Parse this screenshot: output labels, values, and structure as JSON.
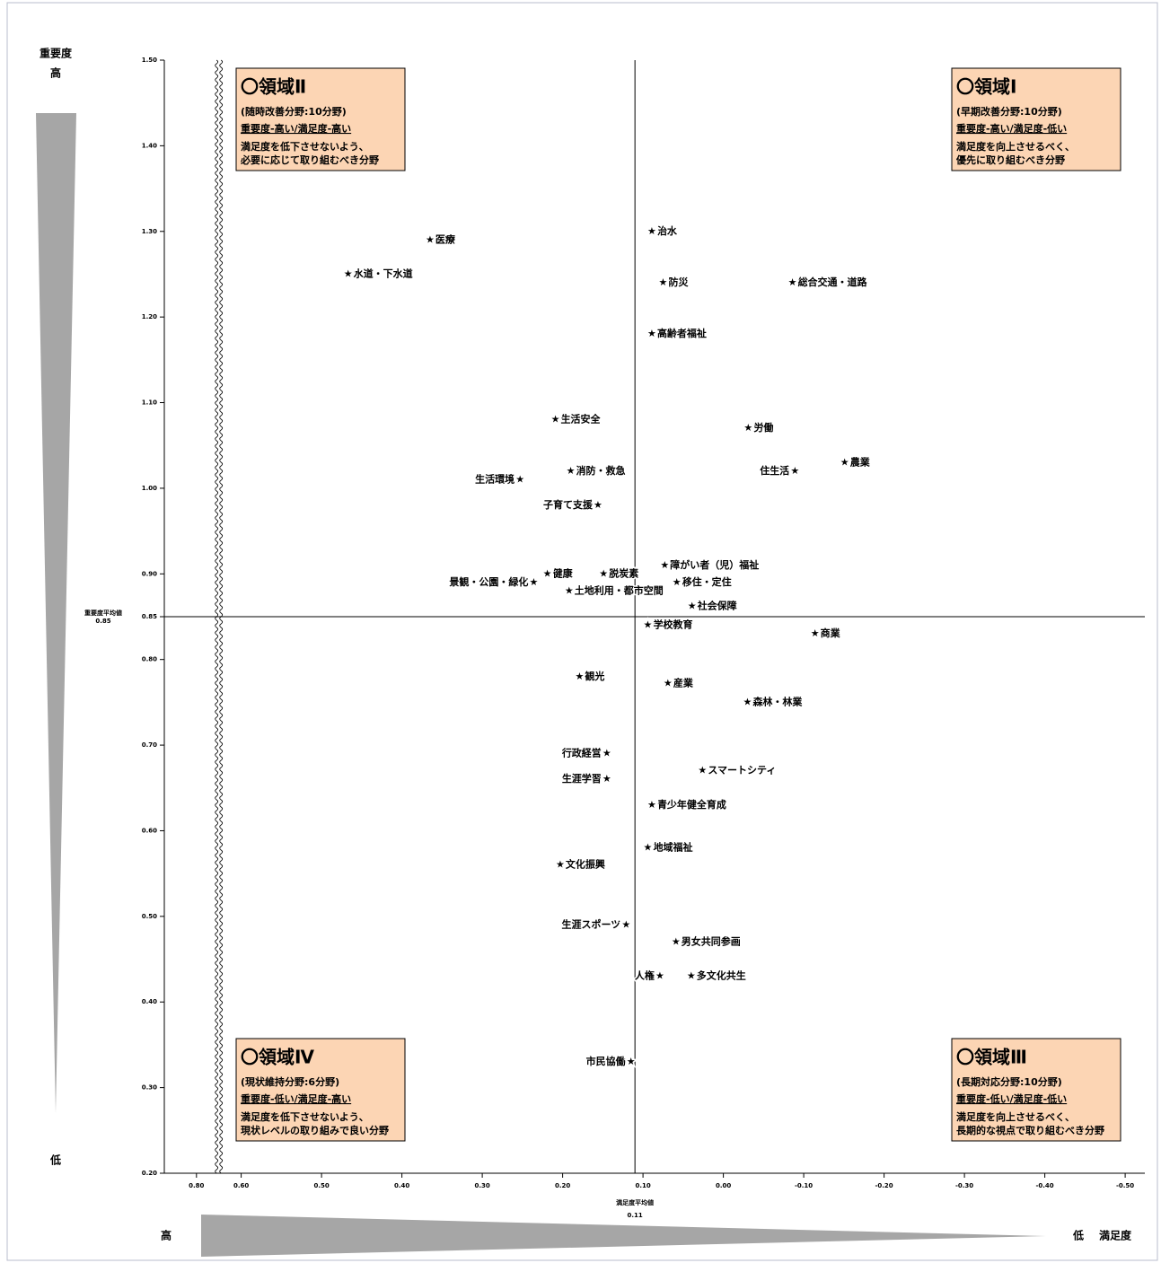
{
  "chart_data": {
    "type": "scatter",
    "y_axis_label": "重要度",
    "y_high": "高",
    "y_low": "低",
    "x_axis_label": "満足度",
    "x_high": "高",
    "x_low": "低",
    "mean_x": {
      "label": "満足度平均値",
      "value": 0.11
    },
    "mean_y": {
      "label": "重要度平均値",
      "value": 0.85
    },
    "xlim": [
      0.84,
      -0.52
    ],
    "x_break": [
      0.78,
      0.62
    ],
    "ylim": [
      0.2,
      1.5
    ],
    "xticks": [
      {
        "value": 0.8,
        "label": "0.80"
      },
      {
        "value": 0.6,
        "label": "0.60"
      },
      {
        "value": 0.5,
        "label": "0.50"
      },
      {
        "value": 0.4,
        "label": "0.40"
      },
      {
        "value": 0.3,
        "label": "0.30"
      },
      {
        "value": 0.2,
        "label": "0.20"
      },
      {
        "value": 0.1,
        "label": "0.10"
      },
      {
        "value": 0,
        "label": "0.00"
      },
      {
        "value": -0.1,
        "label": "-0.10"
      },
      {
        "value": -0.2,
        "label": "-0.20"
      },
      {
        "value": -0.3,
        "label": "-0.30"
      },
      {
        "value": -0.4,
        "label": "-0.40"
      },
      {
        "value": -0.5,
        "label": "-0.50"
      }
    ],
    "yticks": [
      {
        "value": 1.5,
        "label": "1.50"
      },
      {
        "value": 1.4,
        "label": "1.40"
      },
      {
        "value": 1.3,
        "label": "1.30"
      },
      {
        "value": 1.2,
        "label": "1.20"
      },
      {
        "value": 1.1,
        "label": "1.10"
      },
      {
        "value": 1,
        "label": "1.00"
      },
      {
        "value": 0.9,
        "label": "0.90"
      },
      0.85,
      {
        "value": 0.8,
        "label": "0.80"
      },
      {
        "value": 0.7,
        "label": "0.70"
      },
      {
        "value": 0.6,
        "label": "0.60"
      },
      {
        "value": 0.5,
        "label": "0.50"
      },
      {
        "value": 0.4,
        "label": "0.40"
      },
      {
        "value": 0.3,
        "label": "0.30"
      },
      {
        "value": 0.2,
        "label": "0.20"
      }
    ],
    "marker": "★",
    "labels": [
      "医療",
      "水道・下水道",
      "治水",
      "防災",
      "総合交通・道路",
      "高齢者福祉",
      "生活安全",
      "労働",
      "消防・救急",
      "住生活",
      "農業",
      "生活環境",
      "子育て支援",
      "障がい者（児）福祉",
      "健康",
      "脱炭素",
      "景観・公園・緑化",
      "移住・定住",
      "土地利用・都市空間",
      "社会保障",
      "学校教育",
      "商業",
      "観光",
      "産業",
      "森林・林業",
      "行政経営",
      "スマートシティ",
      "生涯学習",
      "青少年健全育成",
      "地域福祉",
      "文化振興",
      "生涯スポーツ",
      "男女共同参画",
      "人権",
      "多文化共生",
      "市民協働"
    ],
    "x": [
      0.365,
      0.467,
      0.089,
      0.075,
      -0.086,
      0.089,
      0.209,
      -0.031,
      0.19,
      -0.089,
      -0.151,
      0.253,
      0.156,
      0.073,
      0.219,
      0.149,
      0.236,
      0.058,
      0.192,
      0.039,
      0.094,
      -0.114,
      0.179,
      0.069,
      -0.03,
      0.145,
      0.026,
      0.145,
      0.089,
      0.094,
      0.203,
      0.121,
      0.059,
      0.079,
      0.04,
      0.115
    ],
    "y": [
      1.29,
      1.25,
      1.3,
      1.24,
      1.24,
      1.18,
      1.08,
      1.07,
      1.02,
      1.02,
      1.03,
      1.01,
      0.98,
      0.91,
      0.9,
      0.9,
      0.89,
      0.89,
      0.88,
      0.862,
      0.84,
      0.83,
      0.78,
      0.772,
      0.75,
      0.69,
      0.67,
      0.66,
      0.63,
      0.58,
      0.56,
      0.49,
      0.47,
      0.43,
      0.43,
      0.33
    ],
    "quadrants": [
      {
        "title": "〇領域Ⅰ",
        "subtitle": "(早期改善分野:10分野)",
        "criteria": "重要度-高い/満足度-低い",
        "note": [
          "満足度を向上させるべく、",
          "優先に取り組むべき分野"
        ]
      },
      {
        "title": "〇領域Ⅱ",
        "subtitle": "(随時改善分野:10分野)",
        "criteria": "重要度-高い/満足度-高い",
        "note": [
          "満足度を低下させないよう、",
          "必要に応じて取り組むべき分野"
        ]
      },
      {
        "title": "〇領域Ⅲ",
        "subtitle": "(長期対応分野:10分野)",
        "criteria": "重要度-低い/満足度-低い",
        "note": [
          "満足度を向上させるべく、",
          "長期的な視点で取り組むべき分野"
        ]
      },
      {
        "title": "〇領域Ⅳ",
        "subtitle": "(現状維持分野:6分野)",
        "criteria": "重要度-低い/満足度-高い",
        "note": [
          "満足度を低下させないよう、",
          "現状レベルの取り組みで良い分野"
        ]
      }
    ]
  }
}
